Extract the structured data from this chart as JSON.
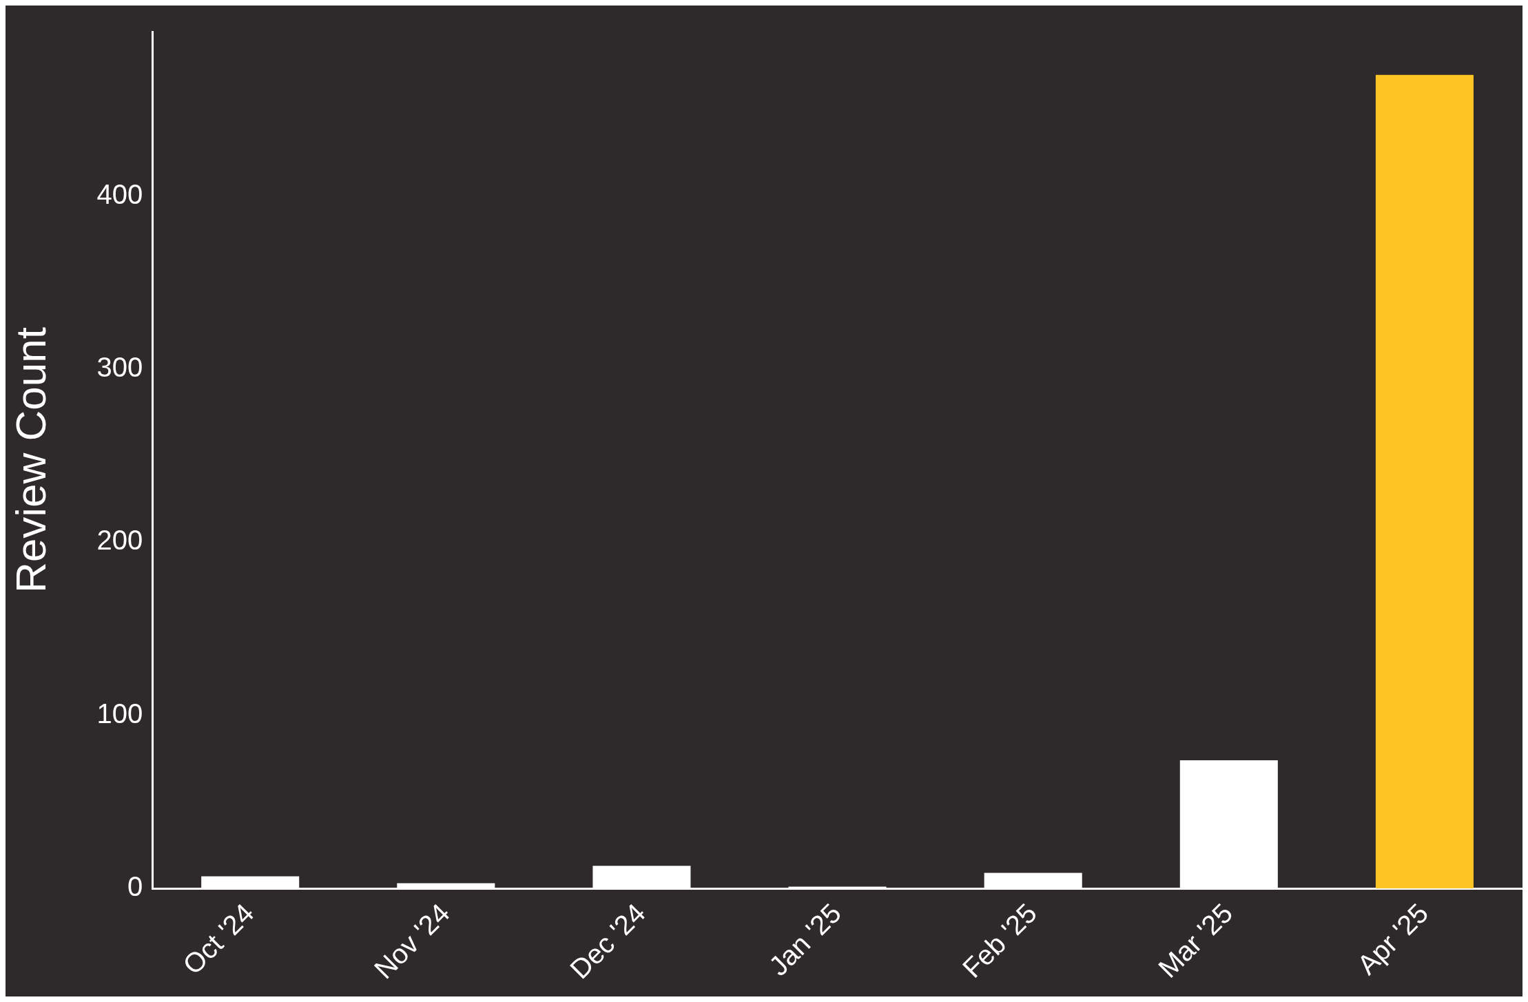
{
  "chart_data": {
    "type": "bar",
    "ylabel": "Review Count",
    "categories": [
      "Oct '24",
      "Nov '24",
      "Dec '24",
      "Jan '25",
      "Feb '25",
      "Mar '25",
      "Apr '25"
    ],
    "values": [
      7,
      3,
      13,
      1,
      9,
      74,
      470
    ],
    "colors": [
      "#ffffff",
      "#ffffff",
      "#ffffff",
      "#ffffff",
      "#ffffff",
      "#ffffff",
      "#ffc524"
    ],
    "ylim": [
      0,
      495
    ],
    "yticks": [
      0,
      100,
      200,
      300,
      400
    ],
    "grid": false,
    "legend": false
  }
}
